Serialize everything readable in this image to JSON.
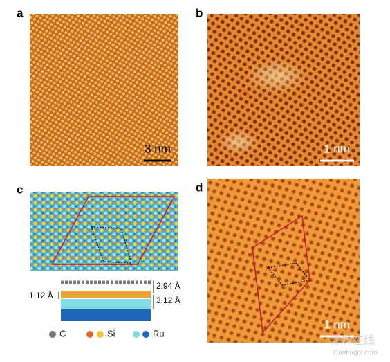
{
  "panels": [
    {
      "label": "a",
      "scale_bar": "3 nm"
    },
    {
      "label": "b",
      "scale_bar": "1 nm"
    },
    {
      "label": "c",
      "dimensions": [
        "2.94 Å",
        "1.12 Å",
        "3.12 Å"
      ],
      "legend": [
        "C",
        "Si",
        "Ru"
      ]
    },
    {
      "label": "d",
      "scale_bar": "1 nm"
    }
  ],
  "watermark": {
    "name": "涂料在线",
    "url": "Coatingol.com"
  }
}
